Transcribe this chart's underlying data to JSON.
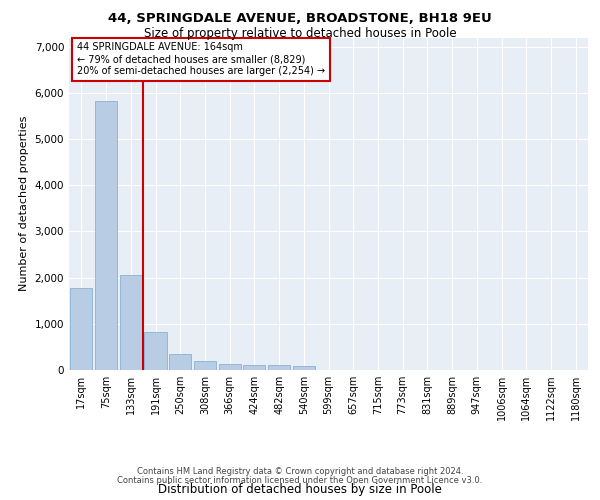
{
  "title1": "44, SPRINGDALE AVENUE, BROADSTONE, BH18 9EU",
  "title2": "Size of property relative to detached houses in Poole",
  "xlabel": "Distribution of detached houses by size in Poole",
  "ylabel": "Number of detached properties",
  "bar_color": "#b8cce4",
  "bar_edge_color": "#7aaacf",
  "vline_color": "#cc0000",
  "annotation_text": "44 SPRINGDALE AVENUE: 164sqm\n← 79% of detached houses are smaller (8,829)\n20% of semi-detached houses are larger (2,254) →",
  "annotation_box_color": "#cc0000",
  "categories": [
    "17sqm",
    "75sqm",
    "133sqm",
    "191sqm",
    "250sqm",
    "308sqm",
    "366sqm",
    "424sqm",
    "482sqm",
    "540sqm",
    "599sqm",
    "657sqm",
    "715sqm",
    "773sqm",
    "831sqm",
    "889sqm",
    "947sqm",
    "1006sqm",
    "1064sqm",
    "1122sqm",
    "1180sqm"
  ],
  "values": [
    1780,
    5820,
    2060,
    820,
    350,
    200,
    130,
    110,
    100,
    80,
    0,
    0,
    0,
    0,
    0,
    0,
    0,
    0,
    0,
    0,
    0
  ],
  "ylim": [
    0,
    7200
  ],
  "yticks": [
    0,
    1000,
    2000,
    3000,
    4000,
    5000,
    6000,
    7000
  ],
  "footer1": "Contains HM Land Registry data © Crown copyright and database right 2024.",
  "footer2": "Contains public sector information licensed under the Open Government Licence v3.0.",
  "background_color": "#e8eef5",
  "fig_background": "#ffffff",
  "title1_fontsize": 9.5,
  "title2_fontsize": 8.5,
  "ylabel_fontsize": 8,
  "xlabel_fontsize": 8.5,
  "tick_fontsize": 7,
  "footer_fontsize": 6,
  "ann_fontsize": 7
}
